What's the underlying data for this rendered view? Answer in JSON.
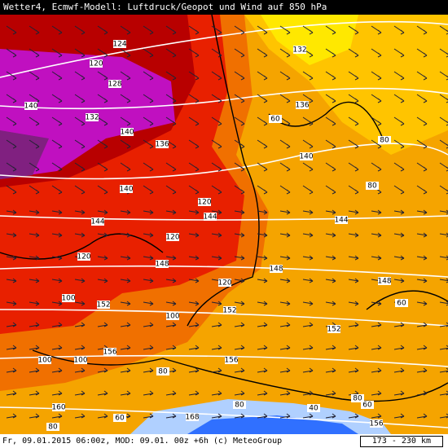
{
  "header": {
    "title": "Wetter4, Ecmwf-Modell: Luftdruck/Geopot und Wind auf 850 hPa"
  },
  "footer": {
    "info": "Fr, 09.01.2015 06:00z, MOD: 09.01. 00z +6h (c) MeteoGroup",
    "scale": "173 - 230 km"
  },
  "contour_labels": [
    124,
    120,
    128,
    132,
    140,
    132,
    136,
    60,
    140,
    136,
    80,
    140,
    80,
    140,
    120,
    144,
    144,
    144,
    120,
    120,
    148,
    148,
    148,
    120,
    100,
    152,
    100,
    152,
    60,
    152,
    100,
    100,
    156,
    156,
    80,
    80,
    80,
    160,
    60,
    40,
    168,
    60,
    80,
    156
  ]
}
